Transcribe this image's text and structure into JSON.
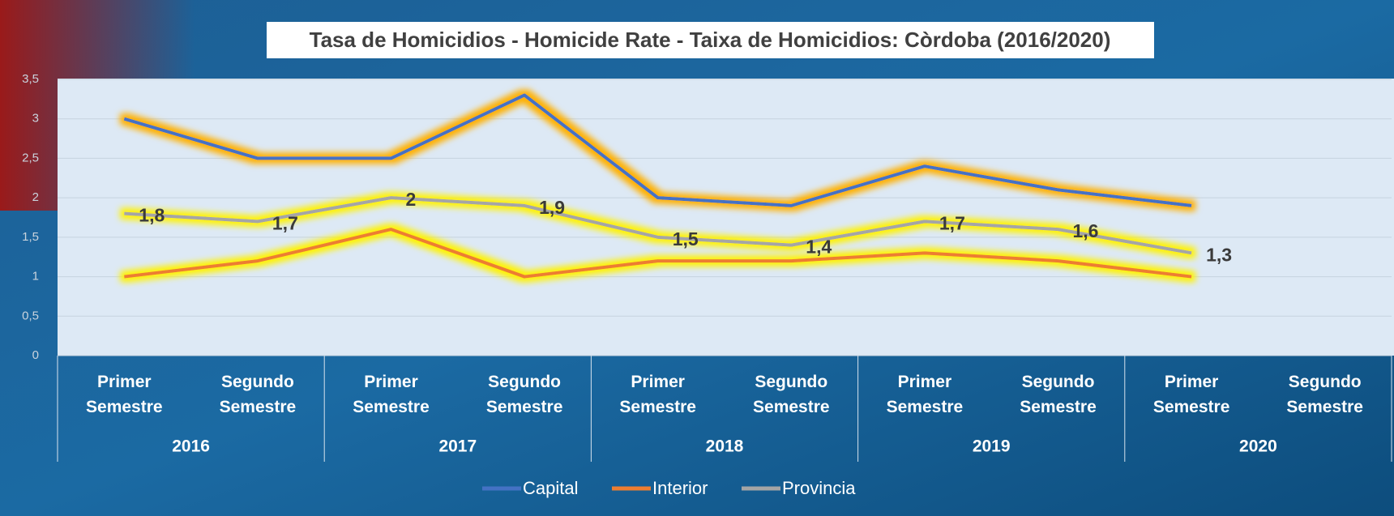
{
  "chart_data": {
    "type": "line",
    "title": "Tasa de Homicidios - Homicide Rate - Taixa de Homicidios: Còrdoba (2016/2020)",
    "categories": [
      "Primer Semestre",
      "Segundo Semestre",
      "Primer Semestre",
      "Segundo Semestre",
      "Primer Semestre",
      "Segundo Semestre",
      "Primer Semestre",
      "Segundo Semestre",
      "Primer Semestre",
      "Segundo Semestre"
    ],
    "category_groups": [
      "2016",
      "2017",
      "2018",
      "2019",
      "2020"
    ],
    "series": [
      {
        "name": "Capital",
        "color": "#4472c4",
        "values": [
          3.0,
          2.5,
          2.5,
          3.3,
          2.0,
          1.9,
          2.4,
          2.1,
          1.9,
          null
        ]
      },
      {
        "name": "Interior",
        "color": "#ed7d31",
        "values": [
          1.0,
          1.2,
          1.6,
          1.0,
          1.2,
          1.2,
          1.3,
          1.2,
          1.0,
          null
        ]
      },
      {
        "name": "Provincia",
        "color": "#a5a5a5",
        "values": [
          1.8,
          1.7,
          2.0,
          1.9,
          1.5,
          1.4,
          1.7,
          1.6,
          1.3,
          null
        ],
        "value_labels": [
          "1,8",
          "1,7",
          "2",
          "1,9",
          "1,5",
          "1,4",
          "1,7",
          "1,6",
          "1,3",
          null
        ]
      }
    ],
    "ylim": [
      0,
      3.5
    ],
    "yticks": [
      0,
      {
        "value": 0.5,
        "label": "0,5"
      },
      1,
      {
        "value": 1.5,
        "label": "1,5"
      },
      2,
      {
        "value": 2.5,
        "label": "2,5"
      },
      3,
      {
        "value": 3.5,
        "label": "3,5"
      }
    ],
    "grid": true,
    "legend": "bottom"
  }
}
